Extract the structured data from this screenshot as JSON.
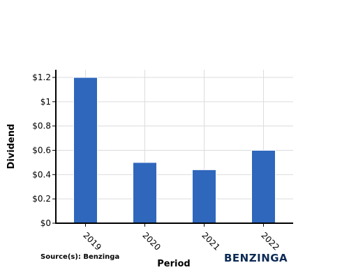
{
  "chart_data": {
    "type": "bar",
    "categories": [
      "2019",
      "2020",
      "2021",
      "2022"
    ],
    "values": [
      1.2,
      0.5,
      0.44,
      0.6
    ],
    "xlabel": "Period",
    "ylabel": "Dividend",
    "ylim": [
      0,
      1.2
    ],
    "yticks": [
      "$0",
      "$0.2",
      "$0.4",
      "$0.6",
      "$0.8",
      "$1",
      "$1.2"
    ],
    "ytick_values": [
      0,
      0.2,
      0.4,
      0.6,
      0.8,
      1.0,
      1.2
    ],
    "bar_color": "#2f67bc",
    "grid": true
  },
  "footer": {
    "source": "Source(s): Benzinga",
    "brand": "BENZINGA",
    "brand_color": "#0b2a54"
  }
}
